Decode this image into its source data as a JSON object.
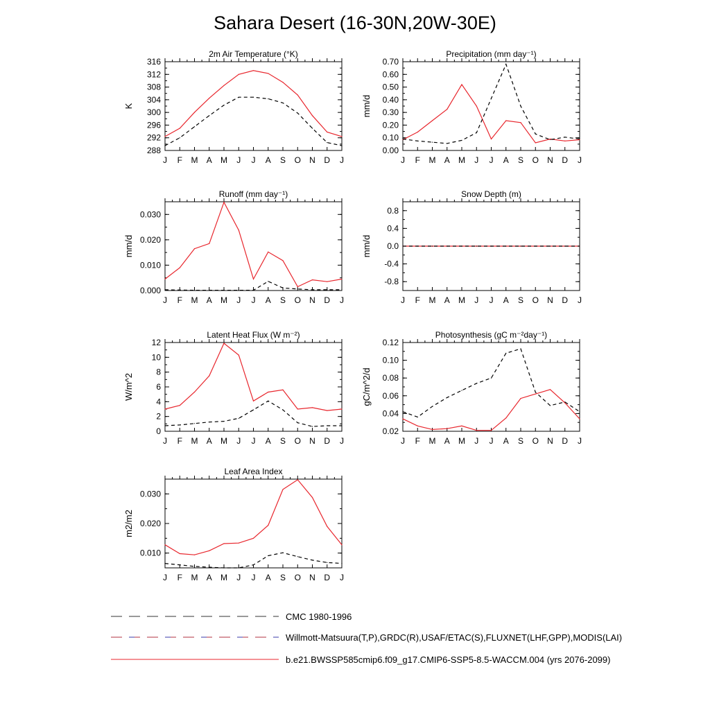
{
  "title": "Sahara Desert (16-30N,20W-30E)",
  "months": [
    "J",
    "F",
    "M",
    "A",
    "M",
    "J",
    "J",
    "A",
    "S",
    "O",
    "N",
    "D",
    "J"
  ],
  "colors": {
    "model": "#e8252c",
    "obs": "#000000",
    "obs_alt": "#3a3aa8"
  },
  "chart_data": [
    {
      "type": "line",
      "title": "2m Air Temperature (°K)",
      "ylabel": "K",
      "ylim": [
        288,
        316
      ],
      "yticks": [
        288,
        292,
        296,
        300,
        304,
        308,
        312,
        316
      ],
      "ytick_labels": [
        "288",
        "292",
        "296",
        "300",
        "304",
        "308",
        "312",
        "316"
      ],
      "series": [
        {
          "name": "model",
          "values": [
            292.4,
            295.0,
            300.0,
            304.5,
            308.5,
            312.0,
            313.2,
            312.3,
            309.5,
            305.5,
            299.0,
            293.8,
            292.4
          ]
        },
        {
          "name": "obs",
          "values": [
            289.5,
            292.0,
            295.5,
            299.0,
            302.3,
            304.8,
            304.8,
            304.3,
            303.0,
            299.8,
            295.0,
            290.5,
            289.5
          ]
        }
      ]
    },
    {
      "type": "line",
      "title": "Precipitation (mm day⁻¹)",
      "ylabel": "mm/d",
      "ylim": [
        0,
        0.7
      ],
      "yticks": [
        0,
        0.1,
        0.2,
        0.3,
        0.4,
        0.5,
        0.6,
        0.7
      ],
      "ytick_labels": [
        "0.00",
        "0.10",
        "0.20",
        "0.30",
        "0.40",
        "0.50",
        "0.60",
        "0.70"
      ],
      "series": [
        {
          "name": "model",
          "values": [
            0.085,
            0.145,
            0.235,
            0.325,
            0.52,
            0.35,
            0.09,
            0.235,
            0.22,
            0.06,
            0.09,
            0.075,
            0.085
          ]
        },
        {
          "name": "obs",
          "values": [
            0.09,
            0.075,
            0.065,
            0.055,
            0.08,
            0.14,
            0.41,
            0.68,
            0.35,
            0.13,
            0.085,
            0.105,
            0.09
          ]
        }
      ]
    },
    {
      "type": "line",
      "title": "Runoff (mm day⁻¹)",
      "ylabel": "mm/d",
      "ylim": [
        0,
        0.035
      ],
      "yticks": [
        0,
        0.01,
        0.02,
        0.03
      ],
      "ytick_labels": [
        "0.000",
        "0.010",
        "0.020",
        "0.030"
      ],
      "series": [
        {
          "name": "model",
          "values": [
            0.0045,
            0.009,
            0.0165,
            0.0185,
            0.0348,
            0.0238,
            0.0045,
            0.0152,
            0.0118,
            0.0015,
            0.0042,
            0.0035,
            0.0045
          ]
        },
        {
          "name": "obs",
          "values": [
            0.0003,
            0.0002,
            0.0001,
            0.0001,
            0.0001,
            0.0001,
            0.0001,
            0.0036,
            0.001,
            0.0006,
            0.0003,
            0.0003,
            0.0003
          ]
        }
      ]
    },
    {
      "type": "line",
      "title": "Snow Depth (m)",
      "ylabel": "mm/d",
      "ylim": [
        -1.0,
        1.0
      ],
      "yticks": [
        -0.8,
        -0.4,
        0,
        0.4,
        0.8
      ],
      "ytick_labels": [
        "-0.8",
        "-0.4",
        "0.0",
        "0.4",
        "0.8"
      ],
      "series": [
        {
          "name": "model",
          "values": [
            0,
            0,
            0,
            0,
            0,
            0,
            0,
            0,
            0,
            0,
            0,
            0,
            0
          ]
        },
        {
          "name": "obs",
          "values": [
            0,
            0,
            0,
            0,
            0,
            0,
            0,
            0,
            0,
            0,
            0,
            0,
            0
          ]
        }
      ]
    },
    {
      "type": "line",
      "title": "Latent Heat Flux (W m⁻²)",
      "ylabel": "W/m^2",
      "ylim": [
        0,
        12
      ],
      "yticks": [
        0,
        2,
        4,
        6,
        8,
        10,
        12
      ],
      "ytick_labels": [
        "0",
        "2",
        "4",
        "6",
        "8",
        "10",
        "12"
      ],
      "series": [
        {
          "name": "model",
          "values": [
            3.0,
            3.5,
            5.3,
            7.5,
            11.9,
            10.3,
            4.1,
            5.3,
            5.6,
            3.0,
            3.2,
            2.8,
            3.0
          ]
        },
        {
          "name": "obs",
          "values": [
            0.75,
            0.85,
            1.05,
            1.25,
            1.35,
            1.75,
            2.9,
            4.1,
            2.9,
            1.15,
            0.65,
            0.75,
            0.75
          ]
        }
      ]
    },
    {
      "type": "line",
      "title": "Photosynthesis (gC m⁻²day⁻¹)",
      "ylabel": "gC/m^2/d",
      "ylim": [
        0.02,
        0.12
      ],
      "yticks": [
        0.02,
        0.04,
        0.06,
        0.08,
        0.1,
        0.12
      ],
      "ytick_labels": [
        "0.02",
        "0.04",
        "0.06",
        "0.08",
        "0.10",
        "0.12"
      ],
      "series": [
        {
          "name": "model",
          "values": [
            0.034,
            0.026,
            0.022,
            0.023,
            0.026,
            0.021,
            0.021,
            0.035,
            0.057,
            0.062,
            0.067,
            0.052,
            0.034
          ]
        },
        {
          "name": "obs",
          "values": [
            0.042,
            0.036,
            0.048,
            0.058,
            0.066,
            0.074,
            0.08,
            0.108,
            0.113,
            0.064,
            0.049,
            0.053,
            0.042
          ]
        }
      ]
    },
    {
      "type": "line",
      "title": "Leaf Area Index",
      "ylabel": "m2/m2",
      "ylim": [
        0.005,
        0.035
      ],
      "yticks": [
        0.01,
        0.02,
        0.03
      ],
      "ytick_labels": [
        "0.010",
        "0.020",
        "0.030"
      ],
      "series": [
        {
          "name": "model",
          "values": [
            0.0128,
            0.0098,
            0.0094,
            0.0108,
            0.0132,
            0.0134,
            0.015,
            0.0194,
            0.0315,
            0.0348,
            0.0288,
            0.019,
            0.0128
          ]
        },
        {
          "name": "obs",
          "values": [
            0.0065,
            0.006,
            0.0055,
            0.0052,
            0.005,
            0.005,
            0.006,
            0.0091,
            0.0101,
            0.0088,
            0.0076,
            0.0068,
            0.0065
          ]
        }
      ]
    }
  ],
  "legend": [
    {
      "label": "CMC 1980-1996",
      "style": "dashed",
      "color": "#333333"
    },
    {
      "label": "Willmott-Matsuura(T,P),GRDC(R),USAF/ETAC(S),FLUXNET(LHF,GPP),MODIS(LAI)",
      "style": "dashed-multicolor",
      "color": "#b03040"
    },
    {
      "label": "b.e21.BWSSP585cmip6.f09_g17.CMIP6-SSP5-8.5-WACCM.004 (yrs 2076-2099)",
      "style": "solid",
      "color": "#e8252c"
    }
  ]
}
